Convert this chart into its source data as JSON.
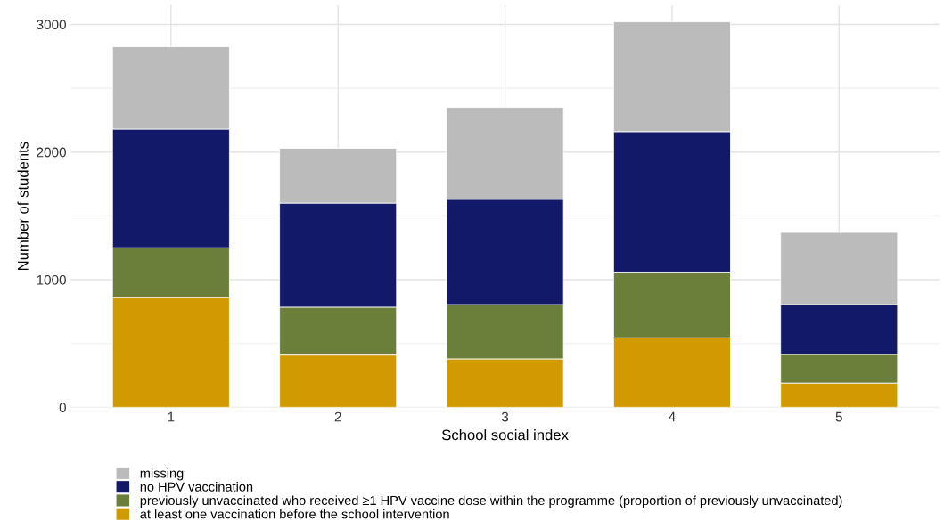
{
  "chart_data": {
    "type": "bar",
    "stacked": true,
    "xlabel": "School social index",
    "ylabel": "Number of students",
    "categories": [
      "1",
      "2",
      "3",
      "4",
      "5"
    ],
    "series": [
      {
        "name": "at least one vaccination before the school intervention",
        "color": "#d19b00",
        "values": [
          860,
          410,
          380,
          545,
          190
        ]
      },
      {
        "name": "previously unvaccinated who received ≥1 HPV vaccine dose within the programme (proportion of previously unvaccinated)",
        "color": "#6b7f3a",
        "values": [
          390,
          375,
          425,
          515,
          225
        ]
      },
      {
        "name": "no HPV vaccination",
        "color": "#121968",
        "values": [
          930,
          815,
          825,
          1100,
          390
        ]
      },
      {
        "name": "missing",
        "color": "#bbbbbb",
        "values": [
          645,
          430,
          720,
          860,
          565
        ]
      }
    ],
    "ylim": [
      0,
      3150
    ],
    "yticks": [
      0,
      1000,
      2000,
      3000
    ],
    "grid": true,
    "legend": "bottom left"
  }
}
